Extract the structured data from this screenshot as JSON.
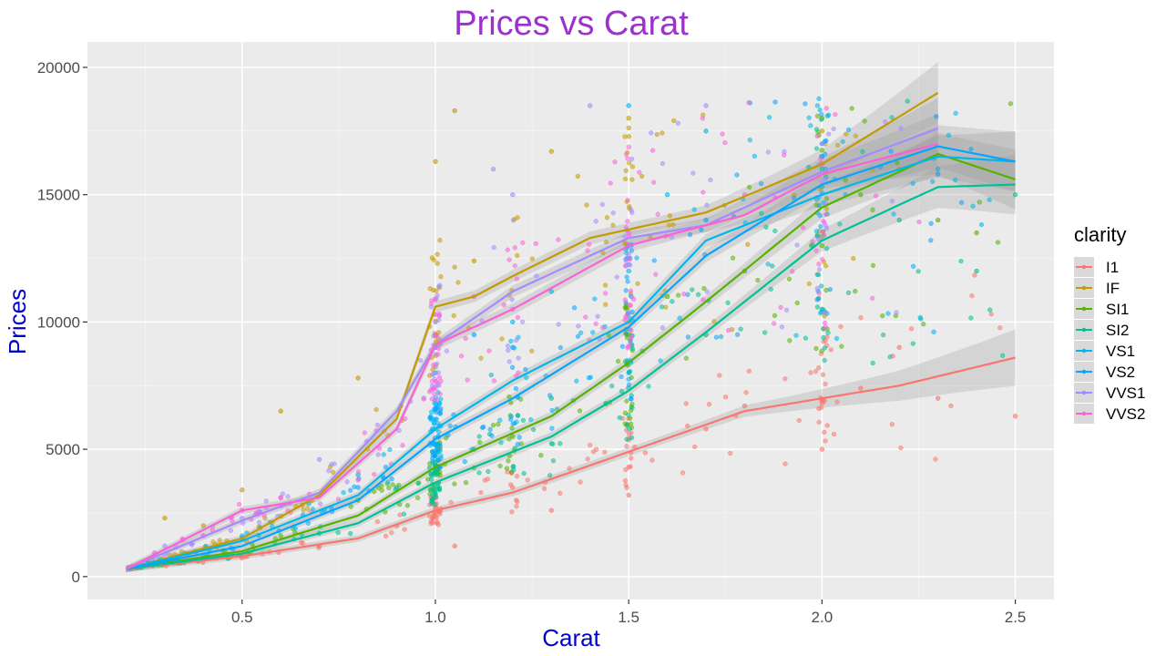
{
  "chart_data": {
    "type": "scatter",
    "title": "Prices vs Carat",
    "xlabel": "Carat",
    "ylabel": "Prices",
    "xlim": [
      0.1,
      2.6
    ],
    "ylim": [
      -900,
      21000
    ],
    "x_ticks": [
      0.5,
      1.0,
      1.5,
      2.0,
      2.5
    ],
    "x_tick_labels": [
      "0.5",
      "1.0",
      "1.5",
      "2.0",
      "2.5"
    ],
    "y_ticks": [
      0,
      5000,
      10000,
      15000,
      20000
    ],
    "y_tick_labels": [
      "0",
      "5000",
      "10000",
      "15000",
      "20000"
    ],
    "grid": true,
    "legend_title": "clarity",
    "legend_position": "right",
    "overlay": "loess smooth lines with confidence bands",
    "series": [
      {
        "name": "I1",
        "color": "#F8766D",
        "smooth": [
          [
            0.2,
            300
          ],
          [
            0.5,
            800
          ],
          [
            0.8,
            1500
          ],
          [
            1.0,
            2600
          ],
          [
            1.2,
            3300
          ],
          [
            1.5,
            4900
          ],
          [
            1.8,
            6500
          ],
          [
            2.0,
            7000
          ],
          [
            2.2,
            7500
          ],
          [
            2.5,
            8600
          ]
        ],
        "points": [
          [
            0.3,
            500
          ],
          [
            0.5,
            900
          ],
          [
            0.7,
            1200
          ],
          [
            0.9,
            2000
          ],
          [
            1.0,
            2700
          ],
          [
            1.05,
            1200
          ],
          [
            1.2,
            3500
          ],
          [
            1.3,
            2600
          ],
          [
            1.5,
            3200
          ],
          [
            1.5,
            4300
          ],
          [
            1.7,
            5800
          ],
          [
            1.8,
            6700
          ],
          [
            2.0,
            5000
          ],
          [
            2.0,
            6800
          ],
          [
            2.1,
            7400
          ],
          [
            2.2,
            9000
          ],
          [
            2.3,
            7000
          ],
          [
            2.5,
            6300
          ]
        ]
      },
      {
        "name": "IF",
        "color": "#C49A00",
        "smooth": [
          [
            0.2,
            300
          ],
          [
            0.5,
            1500
          ],
          [
            0.7,
            3200
          ],
          [
            0.9,
            6200
          ],
          [
            1.0,
            10600
          ],
          [
            1.1,
            11000
          ],
          [
            1.2,
            11800
          ],
          [
            1.4,
            13300
          ],
          [
            1.7,
            14300
          ],
          [
            2.0,
            16200
          ],
          [
            2.3,
            19000
          ]
        ],
        "points": [
          [
            0.3,
            2300
          ],
          [
            0.4,
            2000
          ],
          [
            0.5,
            3400
          ],
          [
            0.6,
            6500
          ],
          [
            0.8,
            7800
          ],
          [
            1.0,
            16300
          ],
          [
            1.05,
            18300
          ],
          [
            1.1,
            12400
          ],
          [
            1.3,
            16700
          ],
          [
            1.5,
            18000
          ],
          [
            2.0,
            17500
          ],
          [
            2.2,
            16000
          ]
        ]
      },
      {
        "name": "SI1",
        "color": "#53B400",
        "smooth": [
          [
            0.2,
            300
          ],
          [
            0.5,
            1000
          ],
          [
            0.8,
            2400
          ],
          [
            1.0,
            4300
          ],
          [
            1.3,
            6300
          ],
          [
            1.5,
            8400
          ],
          [
            1.7,
            10800
          ],
          [
            2.0,
            14500
          ],
          [
            2.3,
            16600
          ],
          [
            2.5,
            15600
          ]
        ],
        "points": [
          [
            0.4,
            700
          ],
          [
            0.6,
            1600
          ],
          [
            0.8,
            3000
          ],
          [
            1.0,
            4500
          ],
          [
            1.2,
            5500
          ],
          [
            1.5,
            9500
          ],
          [
            1.6,
            11000
          ],
          [
            1.8,
            12000
          ],
          [
            2.0,
            13000
          ],
          [
            2.0,
            18000
          ],
          [
            2.1,
            15000
          ],
          [
            2.3,
            14000
          ],
          [
            2.4,
            13500
          ]
        ]
      },
      {
        "name": "SI2",
        "color": "#00C094",
        "smooth": [
          [
            0.2,
            300
          ],
          [
            0.5,
            900
          ],
          [
            0.8,
            2100
          ],
          [
            1.0,
            3700
          ],
          [
            1.3,
            5500
          ],
          [
            1.5,
            7300
          ],
          [
            1.7,
            9600
          ],
          [
            2.0,
            13200
          ],
          [
            2.3,
            15300
          ],
          [
            2.5,
            15400
          ]
        ],
        "points": [
          [
            0.4,
            800
          ],
          [
            0.7,
            1700
          ],
          [
            0.9,
            3500
          ],
          [
            1.0,
            4200
          ],
          [
            1.1,
            5000
          ],
          [
            1.3,
            7000
          ],
          [
            1.5,
            8000
          ],
          [
            1.7,
            9500
          ],
          [
            2.0,
            10500
          ],
          [
            2.0,
            16000
          ],
          [
            2.2,
            14000
          ],
          [
            2.4,
            12000
          ],
          [
            2.5,
            15000
          ]
        ]
      },
      {
        "name": "VS1",
        "color": "#00B6EB",
        "smooth": [
          [
            0.2,
            300
          ],
          [
            0.5,
            1400
          ],
          [
            0.8,
            3200
          ],
          [
            1.0,
            5800
          ],
          [
            1.2,
            7700
          ],
          [
            1.5,
            10000
          ],
          [
            1.7,
            13200
          ],
          [
            2.0,
            15000
          ],
          [
            2.3,
            16500
          ],
          [
            2.5,
            16300
          ]
        ],
        "points": [
          [
            0.5,
            1600
          ],
          [
            0.8,
            4000
          ],
          [
            1.0,
            9000
          ],
          [
            1.2,
            10000
          ],
          [
            1.3,
            11200
          ],
          [
            1.5,
            18500
          ],
          [
            1.5,
            12000
          ],
          [
            1.6,
            15000
          ],
          [
            1.7,
            17500
          ],
          [
            2.0,
            17000
          ],
          [
            2.3,
            16000
          ]
        ]
      },
      {
        "name": "VS2",
        "color": "#06A4FF",
        "smooth": [
          [
            0.2,
            300
          ],
          [
            0.5,
            1200
          ],
          [
            0.8,
            3000
          ],
          [
            1.0,
            5400
          ],
          [
            1.2,
            7000
          ],
          [
            1.5,
            9800
          ],
          [
            1.7,
            12600
          ],
          [
            2.0,
            15400
          ],
          [
            2.3,
            16900
          ],
          [
            2.5,
            16300
          ]
        ],
        "points": [
          [
            0.5,
            1500
          ],
          [
            0.8,
            3500
          ],
          [
            1.0,
            8000
          ],
          [
            1.1,
            9500
          ],
          [
            1.2,
            9000
          ],
          [
            1.5,
            13000
          ],
          [
            1.7,
            14000
          ],
          [
            2.0,
            16500
          ],
          [
            2.3,
            15800
          ]
        ]
      },
      {
        "name": "VVS1",
        "color": "#A58AFF",
        "smooth": [
          [
            0.2,
            300
          ],
          [
            0.5,
            2200
          ],
          [
            0.7,
            3300
          ],
          [
            0.9,
            6500
          ],
          [
            1.0,
            9100
          ],
          [
            1.2,
            11200
          ],
          [
            1.5,
            13300
          ],
          [
            1.7,
            13800
          ],
          [
            2.0,
            15900
          ],
          [
            2.3,
            17600
          ]
        ],
        "points": [
          [
            0.3,
            1200
          ],
          [
            0.5,
            2300
          ],
          [
            0.6,
            3100
          ],
          [
            0.7,
            4600
          ],
          [
            1.0,
            10000
          ],
          [
            1.15,
            16000
          ],
          [
            1.2,
            15000
          ],
          [
            1.4,
            18500
          ],
          [
            1.7,
            18500
          ],
          [
            2.0,
            17000
          ]
        ]
      },
      {
        "name": "VVS2",
        "color": "#FB61D7",
        "smooth": [
          [
            0.2,
            300
          ],
          [
            0.5,
            2600
          ],
          [
            0.7,
            3100
          ],
          [
            0.9,
            5800
          ],
          [
            1.0,
            9100
          ],
          [
            1.2,
            10500
          ],
          [
            1.5,
            13000
          ],
          [
            1.8,
            14200
          ],
          [
            2.0,
            15800
          ],
          [
            2.3,
            17000
          ]
        ],
        "points": [
          [
            0.4,
            1600
          ],
          [
            0.5,
            2600
          ],
          [
            0.6,
            3100
          ],
          [
            0.8,
            3800
          ],
          [
            1.0,
            9500
          ],
          [
            1.1,
            11000
          ],
          [
            1.2,
            10500
          ],
          [
            1.5,
            13500
          ],
          [
            1.8,
            15000
          ],
          [
            2.0,
            16200
          ]
        ]
      }
    ]
  }
}
